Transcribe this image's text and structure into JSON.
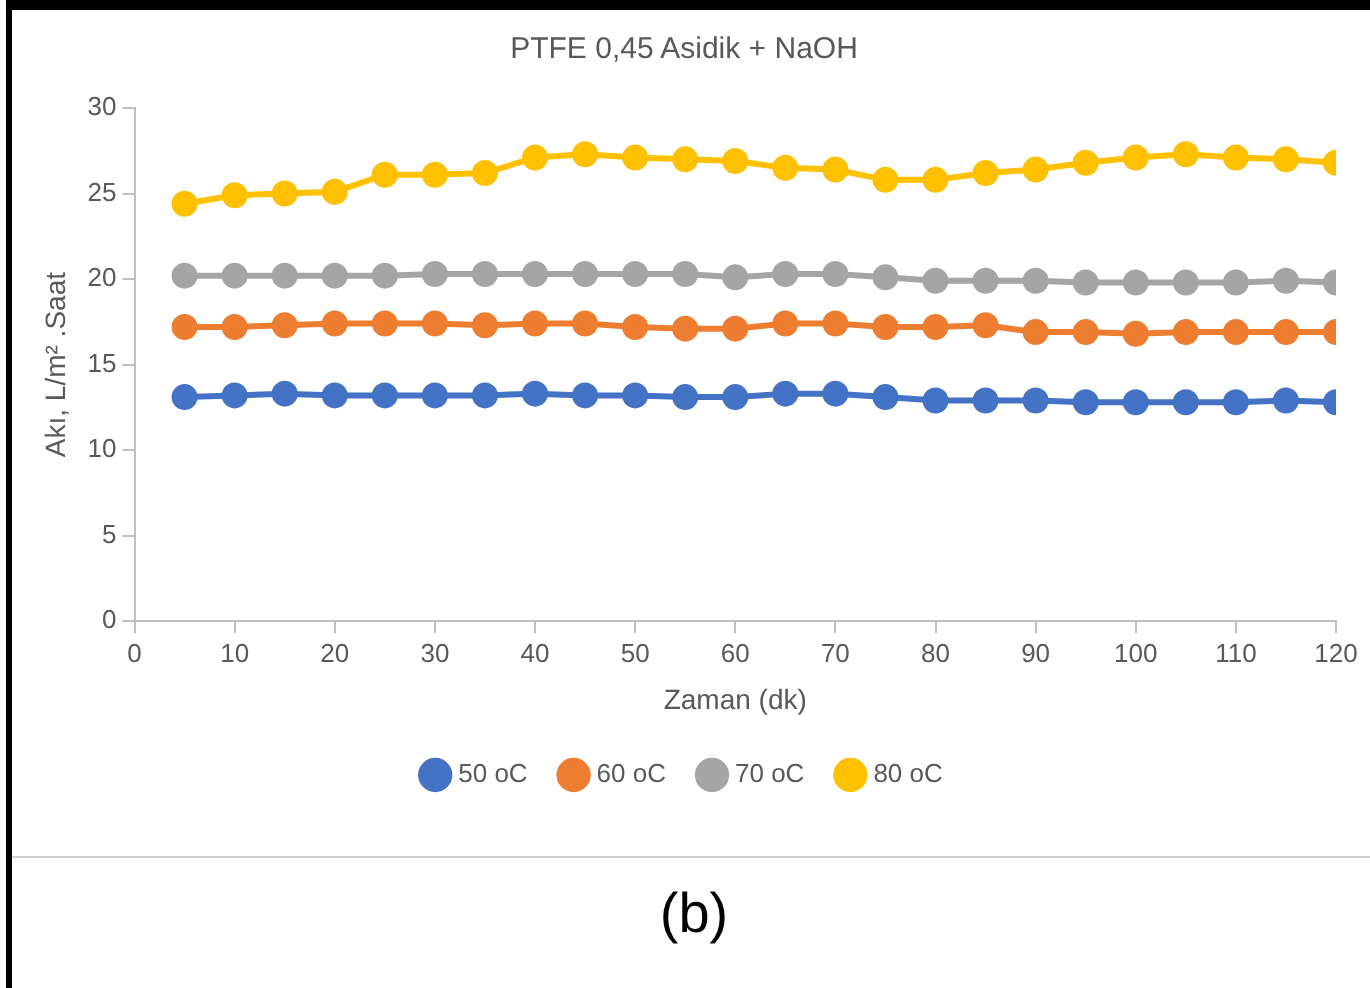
{
  "chart_data": {
    "type": "line",
    "title": "PTFE 0,45 Asidik + NaOH",
    "xlabel": "Zaman (dk)",
    "ylabel": "Akı, L/m² .Saat",
    "x": [
      5,
      10,
      15,
      20,
      25,
      30,
      35,
      40,
      45,
      50,
      55,
      60,
      65,
      70,
      75,
      80,
      85,
      90,
      95,
      100,
      105,
      110,
      115,
      120
    ],
    "xlim": [
      0,
      120
    ],
    "xticks": [
      0,
      10,
      20,
      30,
      40,
      50,
      60,
      70,
      80,
      90,
      100,
      110,
      120
    ],
    "ylim": [
      0,
      30
    ],
    "yticks": [
      0,
      5,
      10,
      15,
      20,
      25,
      30
    ],
    "grid": false,
    "legend": "bottom",
    "marker": "circle",
    "line_style": "solid",
    "series": [
      {
        "name": "50 oC",
        "color": "#4472c4",
        "values": [
          13.1,
          13.2,
          13.3,
          13.2,
          13.2,
          13.2,
          13.2,
          13.3,
          13.2,
          13.2,
          13.1,
          13.1,
          13.3,
          13.3,
          13.1,
          12.9,
          12.9,
          12.9,
          12.8,
          12.8,
          12.8,
          12.8,
          12.9,
          12.8
        ]
      },
      {
        "name": "60 oC",
        "color": "#ed7d31",
        "values": [
          17.2,
          17.2,
          17.3,
          17.4,
          17.4,
          17.4,
          17.3,
          17.4,
          17.4,
          17.2,
          17.1,
          17.1,
          17.4,
          17.4,
          17.2,
          17.2,
          17.3,
          16.9,
          16.9,
          16.8,
          16.9,
          16.9,
          16.9,
          16.9
        ]
      },
      {
        "name": "70 oC",
        "color": "#a5a5a5",
        "values": [
          20.2,
          20.2,
          20.2,
          20.2,
          20.2,
          20.3,
          20.3,
          20.3,
          20.3,
          20.3,
          20.3,
          20.1,
          20.3,
          20.3,
          20.1,
          19.9,
          19.9,
          19.9,
          19.8,
          19.8,
          19.8,
          19.8,
          19.9,
          19.8
        ]
      },
      {
        "name": "80 oC",
        "color": "#ffc000",
        "values": [
          24.4,
          24.9,
          25,
          25.1,
          26.1,
          26.1,
          26.2,
          27.1,
          27.3,
          27.1,
          27,
          26.9,
          26.5,
          26.4,
          25.8,
          25.8,
          26.2,
          26.4,
          26.8,
          27.1,
          27.3,
          27.1,
          27,
          26.8
        ]
      }
    ],
    "annotations": [
      "(b)"
    ]
  }
}
